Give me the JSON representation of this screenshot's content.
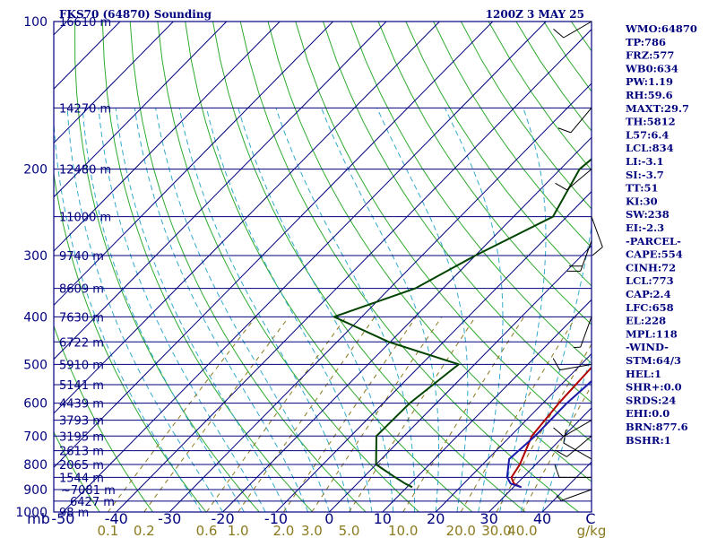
{
  "header": {
    "station": "FKS70 (64870) Sounding",
    "time": "1200Z  3 MAY 25"
  },
  "chart_data": {
    "type": "line",
    "xlabel": "",
    "ylabel": "",
    "xlim": [
      -50,
      50
    ],
    "pressure_range_hpa": [
      1000,
      100
    ],
    "pressure_scale": "log",
    "temperature_ticks": [
      "mb",
      "-50",
      "-40",
      "-30",
      "-20",
      "-10",
      "0",
      "10",
      "20",
      "30",
      "40",
      "C"
    ],
    "mixing_ratio_ticks": [
      "0.1",
      "0.2",
      "0.6",
      "1.0",
      "2.0",
      "3.0",
      "5.0",
      "10.0",
      "20.0",
      "30.0",
      "40.0",
      "g/kg"
    ],
    "pressure_labels": [
      {
        "p": 100,
        "label": "100"
      },
      {
        "p": 200,
        "label": "200"
      },
      {
        "p": 300,
        "label": "300"
      },
      {
        "p": 400,
        "label": "400"
      },
      {
        "p": 500,
        "label": "500"
      },
      {
        "p": 600,
        "label": "600"
      },
      {
        "p": 700,
        "label": "700"
      },
      {
        "p": 800,
        "label": "800"
      },
      {
        "p": 900,
        "label": "900"
      },
      {
        "p": 1000,
        "label": "1000"
      }
    ],
    "height_labels": [
      {
        "p": 100,
        "label": "16610 m"
      },
      {
        "p": 150,
        "label": "14270 m"
      },
      {
        "p": 200,
        "label": "12480 m"
      },
      {
        "p": 250,
        "label": "11000 m"
      },
      {
        "p": 300,
        "label": "9740 m"
      },
      {
        "p": 350,
        "label": "8609 m"
      },
      {
        "p": 400,
        "label": "7630 m"
      },
      {
        "p": 450,
        "label": "6722 m"
      },
      {
        "p": 500,
        "label": "5910 m"
      },
      {
        "p": 550,
        "label": "5141 m"
      },
      {
        "p": 600,
        "label": "4439 m"
      },
      {
        "p": 650,
        "label": "3793 m"
      },
      {
        "p": 700,
        "label": "3195 m"
      },
      {
        "p": 750,
        "label": "2613 m"
      },
      {
        "p": 800,
        "label": "2065 m"
      },
      {
        "p": 850,
        "label": "1544 m"
      },
      {
        "p": 900,
        "label": "~7081 m"
      },
      {
        "p": 950,
        "label": "6427 m"
      },
      {
        "p": 1000,
        "label": "98 m"
      }
    ],
    "series": [
      {
        "color": "#b20000",
        "points": [
          [
            100,
            12.0
          ],
          [
            150,
            10.2
          ],
          [
            200,
            17.2
          ],
          [
            250,
            20.0
          ],
          [
            300,
            22.2
          ],
          [
            350,
            24.0
          ],
          [
            400,
            26.0
          ],
          [
            450,
            24.4
          ],
          [
            500,
            22.5
          ],
          [
            600,
            23.0
          ],
          [
            700,
            24.0
          ],
          [
            800,
            27.0
          ],
          [
            850,
            27.8
          ],
          [
            875,
            29.4
          ],
          [
            890,
            31.4
          ]
        ]
      },
      {
        "color": "#004400",
        "points": [
          [
            100,
            -7.5
          ],
          [
            150,
            -14.0
          ],
          [
            200,
            -16.4
          ],
          [
            250,
            -12.6
          ],
          [
            300,
            -20.0
          ],
          [
            350,
            -25.2
          ],
          [
            400,
            -35.2
          ],
          [
            450,
            -20.3
          ],
          [
            500,
            -3.0
          ],
          [
            600,
            -5.0
          ],
          [
            700,
            -5.2
          ],
          [
            800,
            0.0
          ],
          [
            850,
            6.0
          ],
          [
            875,
            9.0
          ],
          [
            890,
            11.0
          ]
        ]
      },
      {
        "color": "#1a1aaa",
        "points": [
          [
            120,
            -1.8
          ],
          [
            150,
            1.0
          ],
          [
            200,
            13.0
          ],
          [
            250,
            22.0
          ],
          [
            300,
            23.8
          ],
          [
            350,
            25.0
          ],
          [
            400,
            26.2
          ],
          [
            450,
            26.2
          ],
          [
            500,
            25.5
          ],
          [
            600,
            24.5
          ],
          [
            700,
            24.6
          ],
          [
            780,
            24.0
          ],
          [
            850,
            27.0
          ],
          [
            875,
            28.8
          ],
          [
            890,
            31.5
          ]
        ]
      }
    ],
    "indices": [
      "WMO:64870",
      "TP:786",
      "FRZ:577",
      "WB0:634",
      "PW:1.19",
      "RH:59.6",
      "MAXT:29.7",
      "TH:5812",
      "L57:6.4",
      "LCL:834",
      "LI:-3.1",
      "SI:-3.7",
      "TT:51",
      "KI:30",
      "SW:238",
      "EI:-2.3",
      "-PARCEL-",
      "CAPE:554",
      "CINH:72",
      "LCL:773",
      "CAP:2.4",
      "LFC:658",
      "EL:228",
      "MPL:118",
      "-WIND-",
      "STM:64/3",
      "HEL:1",
      "SHR+:0.0",
      "SRDS:24",
      "EHI:0.0",
      "BRN:877.6",
      "BSHR:1"
    ],
    "wind_barbs": [
      {
        "p": 100,
        "dir": 240,
        "kt": 10
      },
      {
        "p": 150,
        "dir": 220,
        "kt": 10
      },
      {
        "p": 200,
        "dir": 230,
        "kt": 10
      },
      {
        "p": 250,
        "dir": 160,
        "kt": 10
      },
      {
        "p": 280,
        "dir": 200,
        "kt": 20
      },
      {
        "p": 400,
        "dir": 200,
        "kt": 5
      },
      {
        "p": 500,
        "dir": 260,
        "kt": 10
      },
      {
        "p": 650,
        "dir": 240,
        "kt": 10
      },
      {
        "p": 700,
        "dir": 230,
        "kt": 10
      },
      {
        "p": 780,
        "dir": 300,
        "kt": 10
      },
      {
        "p": 850,
        "dir": 270,
        "kt": 10
      },
      {
        "p": 900,
        "dir": 250,
        "kt": 5
      }
    ],
    "colors": {
      "frame": "#00007f",
      "isotherm": "#00007f",
      "dry_adiabat": "#2eaa2e",
      "moist_adiabat": "#33aacc",
      "mixing_ratio": "#8a7a1e"
    }
  }
}
